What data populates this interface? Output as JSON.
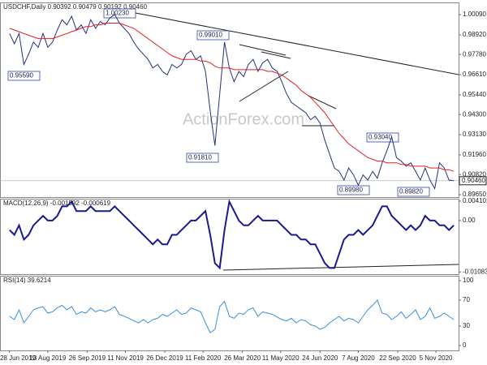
{
  "chart_data": [
    {
      "type": "line",
      "title": "USDCHF,Daily  0.90392 0.90479 0.90192 0.90460",
      "watermark": "ActionForex.com",
      "xlim": [
        -8,
        376
      ],
      "ylim": [
        0.8951,
        1.008
      ],
      "yticks": [
        {
          "value": 0.8965,
          "label": "0.89650"
        },
        {
          "value": 0.9082,
          "label": "0.90820"
        },
        {
          "value": 0.9196,
          "label": "0.91960"
        },
        {
          "value": 0.9313,
          "label": "0.93130"
        },
        {
          "value": 0.943,
          "label": "0.94300"
        },
        {
          "value": 0.9544,
          "label": "0.95440"
        },
        {
          "value": 0.9661,
          "label": "0.96610"
        },
        {
          "value": 0.9778,
          "label": "0.97780"
        },
        {
          "value": 0.9892,
          "label": "0.98920"
        },
        {
          "value": 1.0009,
          "label": "1.00090"
        }
      ],
      "current": {
        "value": 0.9046,
        "label": "0.90460"
      },
      "annotations": [
        "1.00230",
        "0.99010",
        "0.95590",
        "0.91810",
        "0.93040",
        "0.89980",
        "0.89820"
      ],
      "x": [
        0,
        4,
        8,
        12,
        16,
        20,
        24,
        28,
        32,
        36,
        40,
        44,
        48,
        52,
        56,
        60,
        64,
        68,
        72,
        76,
        80,
        84,
        88,
        92,
        96,
        100,
        104,
        108,
        112,
        116,
        120,
        124,
        128,
        132,
        136,
        140,
        144,
        148,
        152,
        156,
        160,
        164,
        168,
        172,
        176,
        180,
        184,
        188,
        192,
        196,
        200,
        204,
        208,
        212,
        216,
        220,
        224,
        228,
        232,
        236,
        240,
        244,
        248,
        252,
        256,
        260,
        264,
        268,
        272,
        276,
        280,
        284,
        288,
        292,
        296,
        300,
        304,
        308,
        312,
        316,
        320,
        324,
        328,
        332,
        336,
        340,
        344,
        348,
        352,
        356,
        360,
        364,
        368,
        372
      ],
      "series": [
        {
          "color": "#22337a",
          "values": [
            0.99,
            0.984,
            0.99,
            0.972,
            0.978,
            0.985,
            0.982,
            0.99,
            0.982,
            0.985,
            0.992,
            0.998,
            0.995,
            1.0,
            0.992,
            0.995,
            0.99,
            0.998,
            0.993,
            0.997,
            0.995,
            0.999,
            1.001,
            0.996,
            0.993,
            0.99,
            0.985,
            0.981,
            0.978,
            0.975,
            0.97,
            0.972,
            0.968,
            0.966,
            0.972,
            0.97,
            0.972,
            0.978,
            0.98,
            0.975,
            0.977,
            0.968,
            0.945,
            0.925,
            0.955,
            0.985,
            0.97,
            0.962,
            0.968,
            0.965,
            0.972,
            0.975,
            0.968,
            0.973,
            0.975,
            0.97,
            0.968,
            0.962,
            0.955,
            0.95,
            0.948,
            0.946,
            0.944,
            0.94,
            0.942,
            0.938,
            0.928,
            0.92,
            0.912,
            0.91,
            0.905,
            0.912,
            0.908,
            0.902,
            0.908,
            0.905,
            0.91,
            0.906,
            0.915,
            0.922,
            0.93,
            0.918,
            0.916,
            0.913,
            0.915,
            0.91,
            0.905,
            0.912,
            0.905,
            0.9,
            0.915,
            0.912,
            0.905,
            0.9046
          ]
        },
        {
          "color": "#e02020",
          "values": [
            0.993,
            0.992,
            0.991,
            0.99,
            0.989,
            0.988,
            0.987,
            0.987,
            0.987,
            0.987,
            0.988,
            0.989,
            0.99,
            0.991,
            0.992,
            0.993,
            0.994,
            0.994,
            0.995,
            0.995,
            0.996,
            0.996,
            0.996,
            0.996,
            0.995,
            0.994,
            0.993,
            0.991,
            0.989,
            0.987,
            0.985,
            0.983,
            0.981,
            0.979,
            0.977,
            0.976,
            0.975,
            0.975,
            0.975,
            0.975,
            0.974,
            0.974,
            0.973,
            0.971,
            0.97,
            0.97,
            0.97,
            0.969,
            0.969,
            0.969,
            0.969,
            0.969,
            0.969,
            0.969,
            0.968,
            0.968,
            0.967,
            0.966,
            0.964,
            0.962,
            0.96,
            0.957,
            0.955,
            0.953,
            0.95,
            0.947,
            0.944,
            0.94,
            0.936,
            0.932,
            0.929,
            0.926,
            0.924,
            0.922,
            0.92,
            0.918,
            0.917,
            0.916,
            0.916,
            0.915,
            0.915,
            0.915,
            0.914,
            0.914,
            0.913,
            0.913,
            0.913,
            0.913,
            0.912,
            0.912,
            0.912,
            0.911,
            0.911,
            0.91
          ]
        }
      ]
    },
    {
      "type": "line",
      "title": "MACD(12,26,9) -0.001592 -0.000619",
      "xlim": [
        -8,
        376
      ],
      "ylim": [
        -0.0113,
        0.0046
      ],
      "yticks": [
        -0.010833,
        {
          "value": 0,
          "label": "0.00"
        },
        0.004101
      ],
      "x": [
        0,
        4,
        8,
        12,
        16,
        20,
        24,
        28,
        32,
        36,
        40,
        44,
        48,
        52,
        56,
        60,
        64,
        68,
        72,
        76,
        80,
        84,
        88,
        92,
        96,
        100,
        104,
        108,
        112,
        116,
        120,
        124,
        128,
        132,
        136,
        140,
        144,
        148,
        152,
        156,
        160,
        164,
        168,
        172,
        176,
        180,
        184,
        188,
        192,
        196,
        200,
        204,
        208,
        212,
        216,
        220,
        224,
        228,
        232,
        236,
        240,
        244,
        248,
        252,
        256,
        260,
        264,
        268,
        272,
        276,
        280,
        284,
        288,
        292,
        296,
        300,
        304,
        308,
        312,
        316,
        320,
        324,
        328,
        332,
        336,
        340,
        344,
        348,
        352,
        356,
        360,
        364,
        368,
        372
      ],
      "series": [
        {
          "color": "#1a1a8c",
          "values": [
            -0.002,
            -0.003,
            -0.001,
            -0.004,
            -0.003,
            -0.001,
            0.0,
            0.001,
            0.0,
            0.0,
            0.001,
            0.003,
            0.003,
            0.004,
            0.002,
            0.002,
            0.002,
            0.003,
            0.002,
            0.002,
            0.002,
            0.002,
            0.003,
            0.002,
            0.001,
            0.0,
            -0.001,
            -0.002,
            -0.003,
            -0.004,
            -0.005,
            -0.004,
            -0.005,
            -0.005,
            -0.003,
            -0.003,
            -0.002,
            -0.001,
            0.0,
            0.0,
            0.001,
            0.002,
            -0.003,
            -0.009,
            -0.01,
            -0.002,
            0.004,
            0.002,
            0.0,
            -0.001,
            -0.001,
            0.0,
            0.001,
            0.0,
            0.0,
            0.0,
            0.0,
            -0.001,
            -0.002,
            -0.003,
            -0.003,
            -0.004,
            -0.004,
            -0.005,
            -0.005,
            -0.007,
            -0.009,
            -0.01,
            -0.01,
            -0.007,
            -0.004,
            -0.003,
            -0.003,
            -0.002,
            -0.003,
            -0.002,
            -0.001,
            0.001,
            0.003,
            0.003,
            0.001,
            0.0,
            -0.001,
            -0.002,
            -0.001,
            -0.002,
            -0.001,
            0.001,
            0.0,
            0.0,
            -0.001,
            -0.001,
            -0.002,
            -0.001
          ]
        }
      ]
    },
    {
      "type": "line",
      "title": "RSI(14) 39.6214",
      "xlim": [
        -8,
        376
      ],
      "ylim": [
        -7.5,
        107.5
      ],
      "yticks": [
        0,
        30,
        70,
        100
      ],
      "xticks": [
        {
          "value": 0,
          "label": "28 Jun 2019"
        },
        {
          "value": 32,
          "label": "13 Aug 2019"
        },
        {
          "value": 65,
          "label": "26 Sep 2019"
        },
        {
          "value": 97,
          "label": "11 Nov 2019"
        },
        {
          "value": 130,
          "label": "26 Dec 2019"
        },
        {
          "value": 162,
          "label": "11 Feb 2020"
        },
        {
          "value": 195,
          "label": "26 Mar 2020"
        },
        {
          "value": 227,
          "label": "11 May 2020"
        },
        {
          "value": 260,
          "label": "24 Jun 2020"
        },
        {
          "value": 292,
          "label": "7 Aug 2020"
        },
        {
          "value": 325,
          "label": "22 Sep 2020"
        },
        {
          "value": 357,
          "label": "5 Nov 2020"
        }
      ],
      "x": [
        0,
        4,
        8,
        12,
        16,
        20,
        24,
        28,
        32,
        36,
        40,
        44,
        48,
        52,
        56,
        60,
        64,
        68,
        72,
        76,
        80,
        84,
        88,
        92,
        96,
        100,
        104,
        108,
        112,
        116,
        120,
        124,
        128,
        132,
        136,
        140,
        144,
        148,
        152,
        156,
        160,
        164,
        168,
        172,
        176,
        180,
        184,
        188,
        192,
        196,
        200,
        204,
        208,
        212,
        216,
        220,
        224,
        228,
        232,
        236,
        240,
        244,
        248,
        252,
        256,
        260,
        264,
        268,
        272,
        276,
        280,
        284,
        288,
        292,
        296,
        300,
        304,
        308,
        312,
        316,
        320,
        324,
        328,
        332,
        336,
        340,
        344,
        348,
        352,
        356,
        360,
        364,
        368,
        372
      ],
      "series": [
        {
          "color": "#3a8fe0",
          "values": [
            45,
            40,
            55,
            35,
            45,
            55,
            58,
            60,
            50,
            52,
            58,
            62,
            55,
            60,
            48,
            52,
            50,
            58,
            52,
            55,
            52,
            55,
            60,
            48,
            45,
            42,
            38,
            35,
            40,
            35,
            40,
            42,
            48,
            45,
            50,
            55,
            48,
            50,
            58,
            55,
            52,
            35,
            20,
            25,
            60,
            68,
            45,
            42,
            50,
            48,
            55,
            58,
            45,
            52,
            50,
            48,
            44,
            40,
            38,
            42,
            35,
            40,
            38,
            32,
            30,
            25,
            28,
            35,
            40,
            45,
            38,
            42,
            40,
            35,
            45,
            55,
            62,
            70,
            50,
            48,
            40,
            45,
            52,
            42,
            48,
            55,
            40,
            45,
            58,
            42,
            45,
            50,
            45,
            40
          ]
        }
      ]
    }
  ]
}
